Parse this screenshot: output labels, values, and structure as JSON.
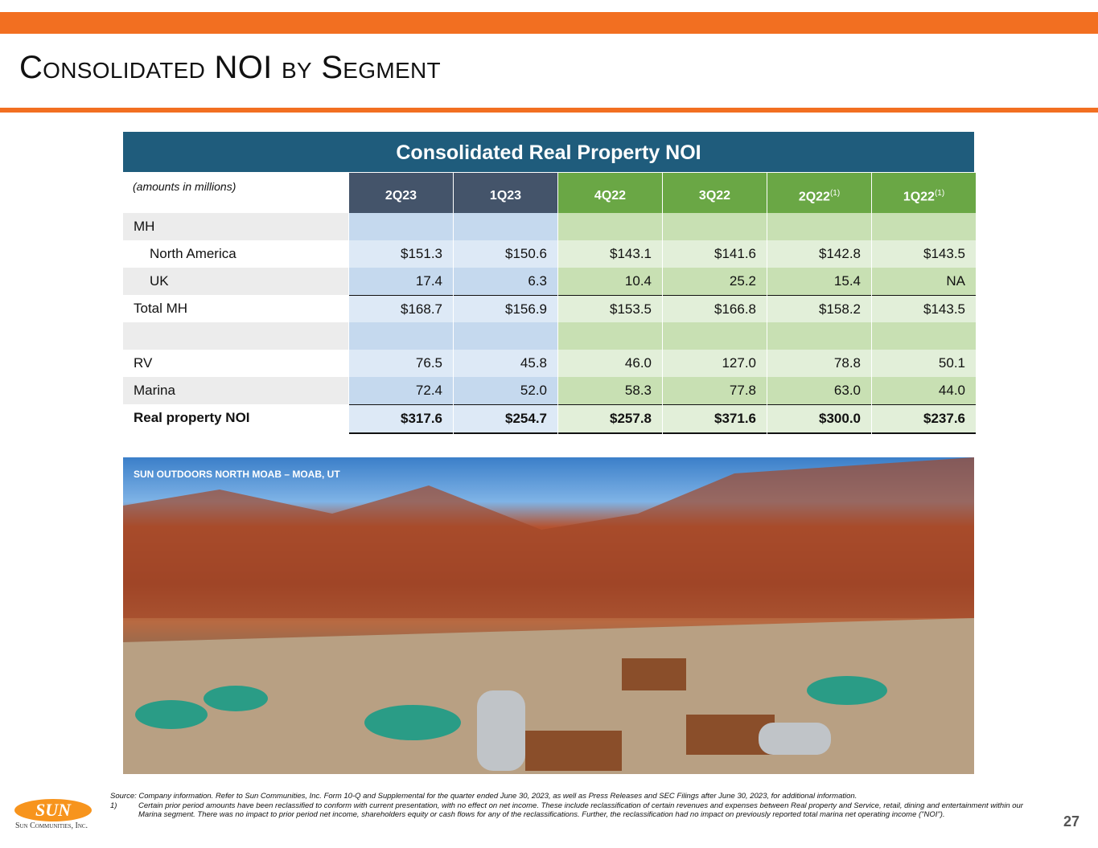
{
  "header": {
    "title": "Consolidated NOI by Segment"
  },
  "table": {
    "title": "Consolidated Real Property NOI",
    "units_note": "(amounts in millions)",
    "columns": [
      {
        "label": "2Q23",
        "color": "#44546a",
        "fills": [
          "#c5d9ee",
          "#dde9f6"
        ]
      },
      {
        "label": "1Q23",
        "color": "#44546a",
        "fills": [
          "#c5d9ee",
          "#dde9f6"
        ]
      },
      {
        "label": "4Q22",
        "color": "#6aa745",
        "fills": [
          "#c8e0b3",
          "#e2efd9"
        ]
      },
      {
        "label": "3Q22",
        "color": "#6aa745",
        "fills": [
          "#c8e0b3",
          "#e2efd9"
        ]
      },
      {
        "label": "2Q22",
        "note": "(1)",
        "color": "#6aa745",
        "fills": [
          "#c8e0b3",
          "#e2efd9"
        ]
      },
      {
        "label": "1Q22",
        "note": "(1)",
        "color": "#6aa745",
        "fills": [
          "#c8e0b3",
          "#e2efd9"
        ]
      }
    ],
    "sections": [
      {
        "rows": [
          {
            "label": "MH"
          },
          {
            "label": "North America",
            "indent": true,
            "values": [
              "$151.3",
              "$150.6",
              "$143.1",
              "$141.6",
              "$142.8",
              "$143.5"
            ]
          },
          {
            "label": "UK",
            "indent": true,
            "values": [
              "17.4",
              "6.3",
              "10.4",
              "25.2",
              "15.4",
              "NA"
            ]
          },
          {
            "label": "Total MH",
            "style": "total",
            "values": [
              "$168.7",
              "$156.9",
              "$153.5",
              "$166.8",
              "$158.2",
              "$143.5"
            ]
          }
        ]
      },
      {
        "rows": [
          {
            "label": "RV",
            "values": [
              "76.5",
              "45.8",
              "46.0",
              "127.0",
              "78.8",
              "50.1"
            ]
          },
          {
            "label": "Marina",
            "values": [
              "72.4",
              "52.0",
              "58.3",
              "77.8",
              "63.0",
              "44.0"
            ]
          },
          {
            "label": "Real property NOI",
            "style": "grand-total",
            "values": [
              "$317.6",
              "$254.7",
              "$257.8",
              "$371.6",
              "$300.0",
              "$237.6"
            ]
          }
        ]
      }
    ]
  },
  "photo": {
    "caption": "SUN OUTDOORS NORTH MOAB – MOAB, UT"
  },
  "footer": {
    "source": "Source: Company information.  Refer to Sun Communities, Inc. Form 10-Q and Supplemental for the quarter ended June 30, 2023, as well as Press Releases and SEC Filings after June 30, 2023, for additional information.",
    "notes": [
      {
        "marker": "1)",
        "text": "Certain prior period amounts have been reclassified to conform with current presentation, with no effect on net income. These include reclassification of certain revenues and expenses between Real property and Service, retail, dining and entertainment within our Marina segment. There was no impact to prior period net income, shareholders equity or cash flows for any of the reclassifications. Further, the reclassification had no impact on previously reported total marina net operating income (\"NOI\")."
      }
    ],
    "logo": {
      "mark": "SUN",
      "name": "Sun Communities, Inc."
    },
    "page_number": "27"
  }
}
